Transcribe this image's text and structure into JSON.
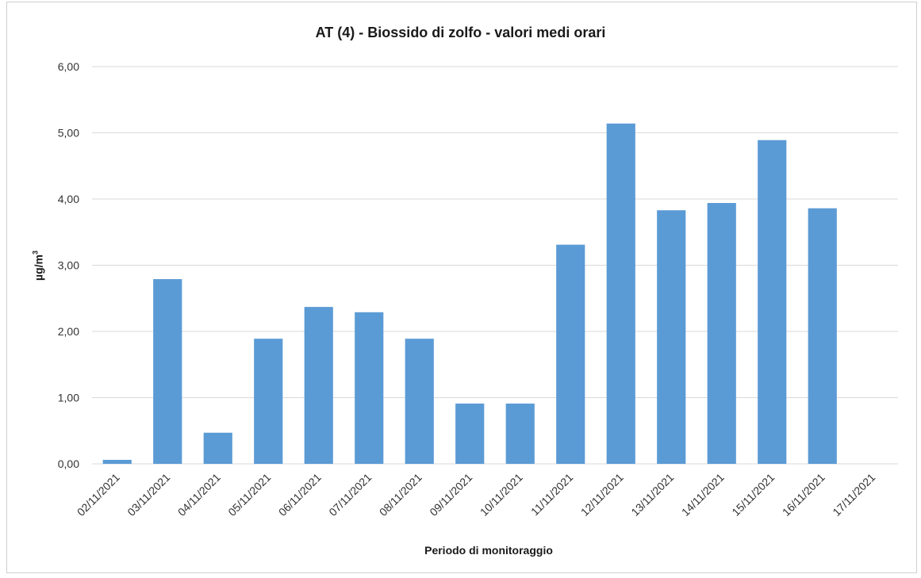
{
  "chart_data": {
    "type": "bar",
    "title": "AT (4) - Biossido di zolfo - valori medi orari",
    "xlabel": "Periodo di  monitoraggio",
    "ylabel_main": "µg/m",
    "ylabel_sup": "3",
    "ylim": [
      0,
      6
    ],
    "yticks": [
      "0,00",
      "1,00",
      "2,00",
      "3,00",
      "4,00",
      "5,00",
      "6,00"
    ],
    "categories": [
      "02/11/2021",
      "03/11/2021",
      "04/11/2021",
      "05/11/2021",
      "06/11/2021",
      "07/11/2021",
      "08/11/2021",
      "09/11/2021",
      "10/11/2021",
      "11/11/2021",
      "12/11/2021",
      "13/11/2021",
      "14/11/2021",
      "15/11/2021",
      "16/11/2021",
      "17/11/2021"
    ],
    "values": [
      0.06,
      2.79,
      0.47,
      1.89,
      2.37,
      2.29,
      1.89,
      0.91,
      0.91,
      3.31,
      5.14,
      3.83,
      3.94,
      4.89,
      3.86,
      null
    ],
    "bar_color": "#5b9bd5",
    "grid_color": "#d9d9d9",
    "grid": true
  }
}
